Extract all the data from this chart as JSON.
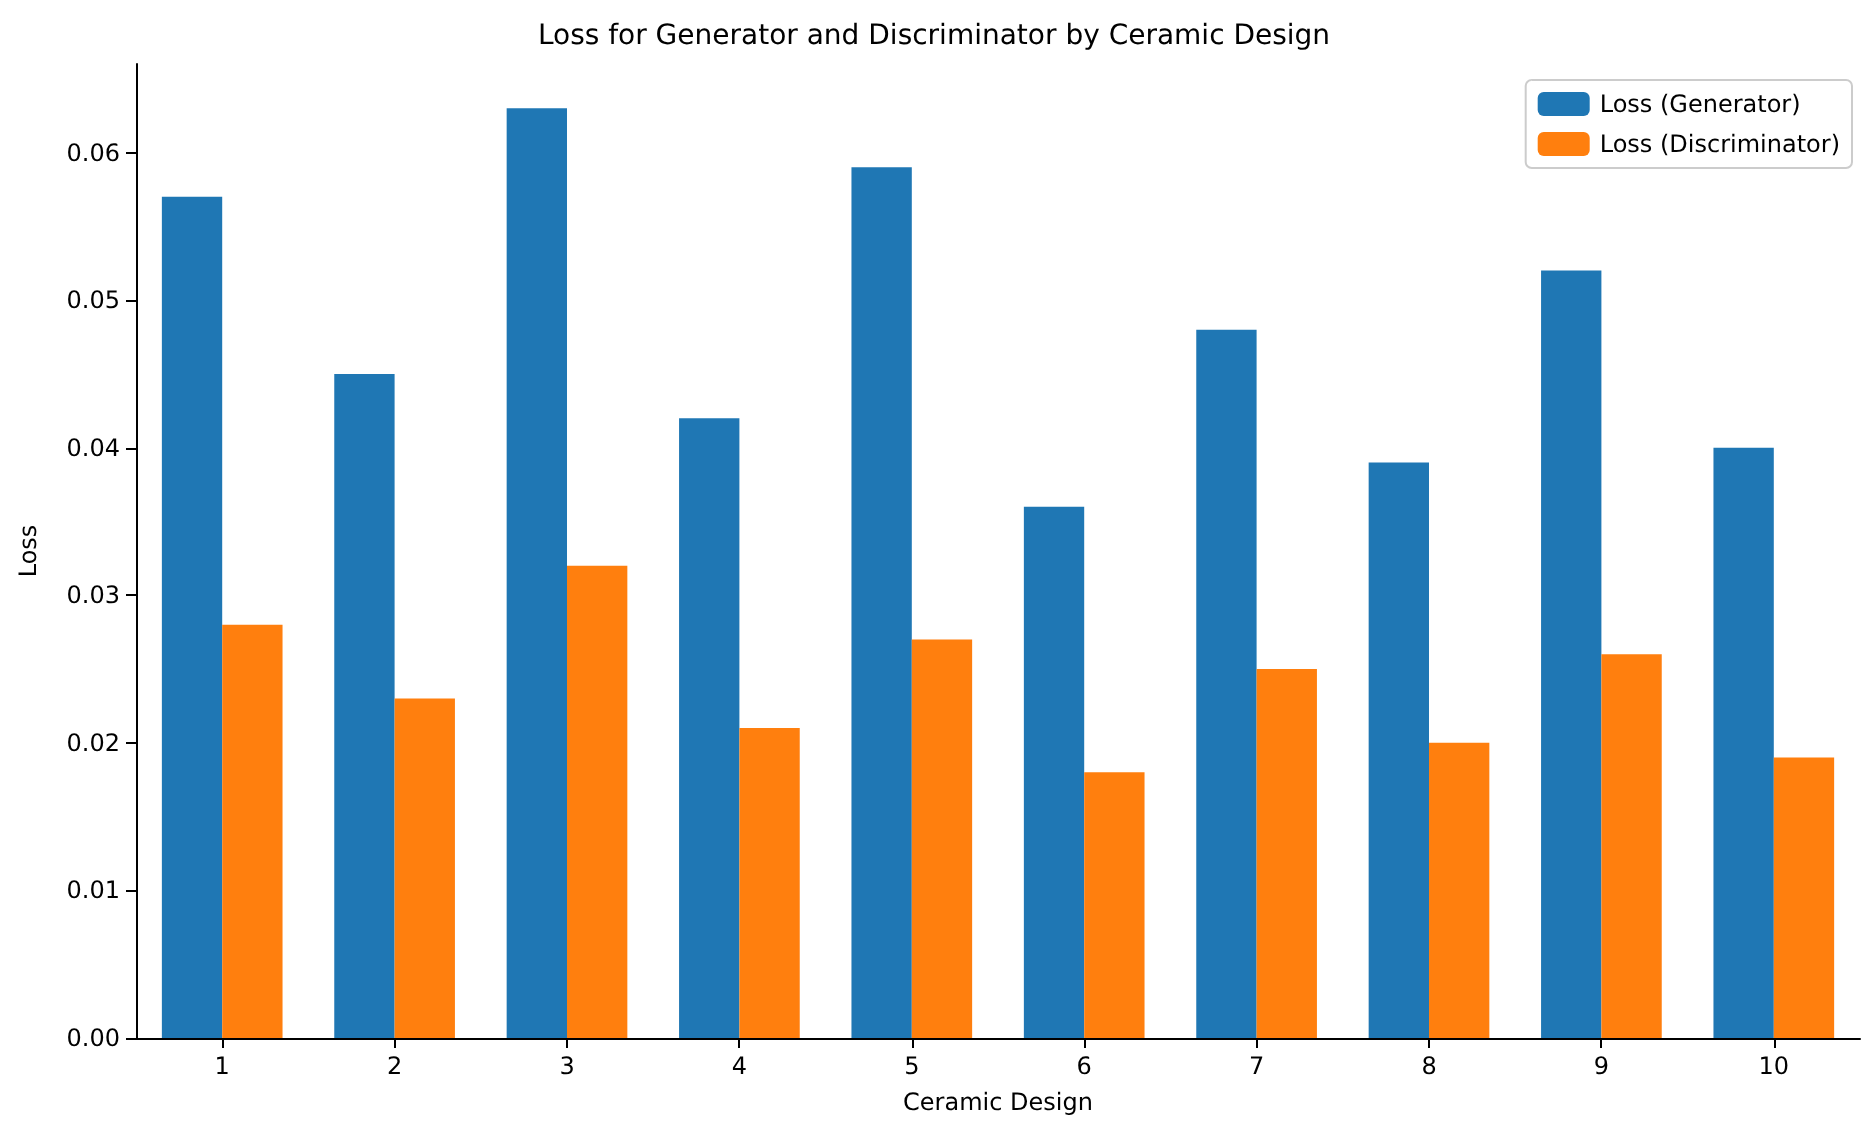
{
  "chart_data": {
    "type": "bar",
    "title": "Loss for Generator and Discriminator by Ceramic Design",
    "xlabel": "Ceramic Design",
    "ylabel": "Loss",
    "categories": [
      "1",
      "2",
      "3",
      "4",
      "5",
      "6",
      "7",
      "8",
      "9",
      "10"
    ],
    "series": [
      {
        "name": "Loss (Generator)",
        "color": "#1f77b4",
        "values": [
          0.057,
          0.045,
          0.063,
          0.042,
          0.059,
          0.036,
          0.048,
          0.039,
          0.052,
          0.04
        ]
      },
      {
        "name": "Loss (Discriminator)",
        "color": "#ff7f0e",
        "values": [
          0.028,
          0.023,
          0.032,
          0.021,
          0.027,
          0.018,
          0.025,
          0.02,
          0.026,
          0.019
        ]
      }
    ],
    "ylim": [
      0,
      0.066
    ],
    "yticks": [
      {
        "value": 0,
        "label": "0.00"
      },
      0.01,
      0.02,
      0.03,
      0.04,
      0.05,
      0.06
    ],
    "grid": false,
    "legend": "top right"
  }
}
